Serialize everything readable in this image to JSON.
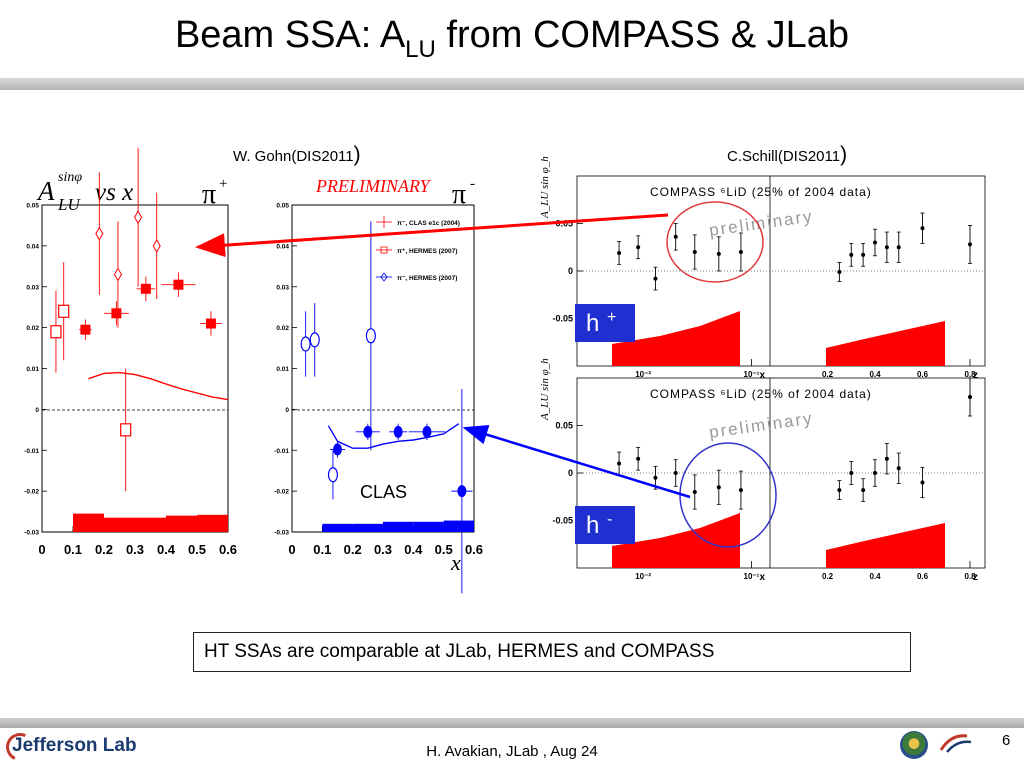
{
  "slide": {
    "title_main": "Beam SSA: A",
    "title_sub": "LU",
    "title_rest": " from COMPASS & JLab",
    "source_left": "W. Gohn(DIS2011",
    "source_right": "C.Schill(DIS2011",
    "source_paren": ")",
    "clas_label": "CLAS",
    "note": "HT SSAs  are comparable at JLab, HERMES  and COMPASS",
    "footer": "H. Avakian, JLab ,  Aug 24",
    "page_number": "6",
    "logo_text": "Jefferson Lab"
  },
  "colors": {
    "red": "#ff0000",
    "blue": "#0000ff",
    "circle_red": "#e03a3a",
    "circle_blue": "#3333cc"
  },
  "chart_data": [
    {
      "type": "scatter",
      "panel": "pi-plus",
      "ylabel_main": "A",
      "ylabel_sub": "LU",
      "ylabel_sup": "sinφ",
      "label_vs": "vs x",
      "particle": "π",
      "particle_charge": "+",
      "xlim": [
        0,
        0.6
      ],
      "ylim": [
        -0.03,
        0.05
      ],
      "yticks": [
        "-0.03",
        "-0.02",
        "-0.01",
        "0",
        "0.01",
        "0.02",
        "0.03",
        "0.04",
        "0.05"
      ],
      "xticks": [
        "0",
        "0.1",
        "0.2",
        "0.3",
        "0.4",
        "0.5",
        "0.6"
      ],
      "series": [
        {
          "style": "open-square",
          "color": "#ff0000",
          "x": [
            0.045,
            0.07,
            0.27
          ],
          "y": [
            0.019,
            0.024,
            -0.005
          ],
          "yerr": [
            0.01,
            0.012,
            0.015
          ]
        },
        {
          "style": "filled-square",
          "color": "#ff0000",
          "x": [
            0.14,
            0.24,
            0.335,
            0.44,
            0.545
          ],
          "y": [
            0.0195,
            0.0235,
            0.0295,
            0.0305,
            0.021
          ],
          "xerr": [
            0.02,
            0.04,
            0.03,
            0.055,
            0.035
          ],
          "yerr": [
            0.0025,
            0.003,
            0.003,
            0.003,
            0.003
          ]
        },
        {
          "style": "open-diamond",
          "color": "#ff0000",
          "x": [
            0.185,
            0.245,
            0.31,
            0.37
          ],
          "y": [
            0.043,
            0.033,
            0.047,
            0.04
          ],
          "yerr": [
            0.015,
            0.013,
            0.017,
            0.013
          ]
        },
        {
          "style": "line",
          "color": "#ff0000",
          "x": [
            0.15,
            0.2,
            0.25,
            0.3,
            0.35,
            0.4,
            0.45,
            0.5,
            0.55,
            0.6
          ],
          "y": [
            0.0075,
            0.0088,
            0.009,
            0.0085,
            0.0075,
            0.0062,
            0.005,
            0.004,
            0.003,
            0.0024
          ]
        },
        {
          "style": "band",
          "color": "#ff0000",
          "x": [
            0.1,
            0.2,
            0.3,
            0.4,
            0.5,
            0.6
          ],
          "y": [
            -0.0255,
            -0.0265,
            -0.0265,
            -0.026,
            -0.0258,
            -0.0255
          ]
        }
      ]
    },
    {
      "type": "scatter",
      "panel": "pi-minus",
      "particle": "π",
      "particle_charge": "-",
      "label_preliminary": "PRELIMINARY",
      "xlabel": "x",
      "xlim": [
        0,
        0.6
      ],
      "ylim": [
        -0.03,
        0.05
      ],
      "yticks": [
        "-0.03",
        "-0.02",
        "-0.01",
        "0",
        "0.01",
        "0.02",
        "0.03",
        "0.04",
        "0.05"
      ],
      "xticks": [
        "0",
        "0.1",
        "0.2",
        "0.3",
        "0.4",
        "0.5",
        "0.6"
      ],
      "legend": [
        "π⁻, CLAS e1c (2004)",
        "π⁺, HERMES (2007)",
        "π⁻, HERMES (2007)"
      ],
      "series": [
        {
          "style": "open-circle",
          "color": "#0000ff",
          "x": [
            0.045,
            0.075,
            0.135,
            0.26
          ],
          "y": [
            0.016,
            0.017,
            -0.016,
            0.018
          ],
          "yerr": [
            0.008,
            0.009,
            0.006,
            0.028
          ]
        },
        {
          "style": "filled-circle",
          "color": "#0000ff",
          "x": [
            0.15,
            0.25,
            0.35,
            0.445,
            0.56
          ],
          "y": [
            -0.0098,
            -0.0055,
            -0.0055,
            -0.0055,
            -0.02
          ],
          "xerr": [
            0.025,
            0.04,
            0.03,
            0.06,
            0.035
          ],
          "yerr": [
            0.002,
            0.002,
            0.002,
            0.002,
            0.025
          ]
        },
        {
          "style": "line",
          "color": "#0000ff",
          "x": [
            0.12,
            0.15,
            0.2,
            0.25,
            0.3,
            0.35,
            0.4,
            0.45,
            0.5,
            0.55
          ],
          "y": [
            -0.004,
            -0.0078,
            -0.0095,
            -0.0095,
            -0.0085,
            -0.0078,
            -0.0075,
            -0.0068,
            -0.006,
            -0.0035
          ]
        },
        {
          "style": "band",
          "color": "#0000ff",
          "x": [
            0.1,
            0.2,
            0.3,
            0.4,
            0.5,
            0.6
          ],
          "y": [
            -0.028,
            -0.028,
            -0.0275,
            -0.0275,
            -0.0272,
            -0.027
          ]
        }
      ]
    },
    {
      "type": "scatter",
      "panel": "compass-h-plus",
      "header": "COMPASS ⁶LiD (25% of 2004 data)",
      "watermark": "preliminary",
      "ylabel": "A_LU sin φ_h",
      "hadron": "h",
      "hadron_charge": "+",
      "yticks": [
        "0.05",
        "0",
        "-0.05"
      ],
      "x_left_ticks": [
        "10⁻²",
        "10⁻¹"
      ],
      "x_left_label": "x",
      "x_right_ticks": [
        "0.2",
        "0.4",
        "0.6",
        "0.8"
      ],
      "x_right_label": "z",
      "ylim": [
        -0.1,
        0.1
      ],
      "series_x": {
        "x": [
          0.006,
          0.009,
          0.013,
          0.02,
          0.03,
          0.05,
          0.08
        ],
        "y": [
          0.019,
          0.025,
          -0.008,
          0.036,
          0.02,
          0.018,
          0.02
        ],
        "yerr": [
          0.012,
          0.012,
          0.012,
          0.014,
          0.018,
          0.018,
          0.02
        ]
      },
      "series_z": {
        "x": [
          0.25,
          0.3,
          0.35,
          0.4,
          0.45,
          0.5,
          0.6,
          0.8
        ],
        "y": [
          -0.001,
          0.017,
          0.017,
          0.03,
          0.025,
          0.025,
          0.045,
          0.028
        ],
        "yerr": [
          0.01,
          0.012,
          0.012,
          0.014,
          0.016,
          0.016,
          0.016,
          0.02
        ]
      }
    },
    {
      "type": "scatter",
      "panel": "compass-h-minus",
      "header": "COMPASS ⁶LiD (25% of 2004 data)",
      "watermark": "preliminary",
      "ylabel": "A_LU sin φ_h",
      "hadron": "h",
      "hadron_charge": "-",
      "yticks": [
        "0.05",
        "0",
        "-0.05"
      ],
      "x_left_ticks": [
        "10⁻²",
        "10⁻¹"
      ],
      "x_left_label": "x",
      "x_right_ticks": [
        "0.2",
        "0.4",
        "0.6",
        "0.8"
      ],
      "x_right_label": "z",
      "ylim": [
        -0.1,
        0.1
      ],
      "series_x": {
        "x": [
          0.006,
          0.009,
          0.013,
          0.02,
          0.03,
          0.05,
          0.08
        ],
        "y": [
          0.01,
          0.015,
          -0.005,
          0.0,
          -0.02,
          -0.015,
          -0.018
        ],
        "yerr": [
          0.012,
          0.012,
          0.012,
          0.014,
          0.018,
          0.018,
          0.02
        ]
      },
      "series_z": {
        "x": [
          0.25,
          0.3,
          0.35,
          0.4,
          0.45,
          0.5,
          0.6,
          0.8
        ],
        "y": [
          -0.018,
          0.0,
          -0.018,
          0.0,
          0.015,
          0.005,
          -0.01,
          0.08
        ],
        "yerr": [
          0.01,
          0.012,
          0.012,
          0.014,
          0.016,
          0.016,
          0.016,
          0.02
        ]
      }
    }
  ]
}
